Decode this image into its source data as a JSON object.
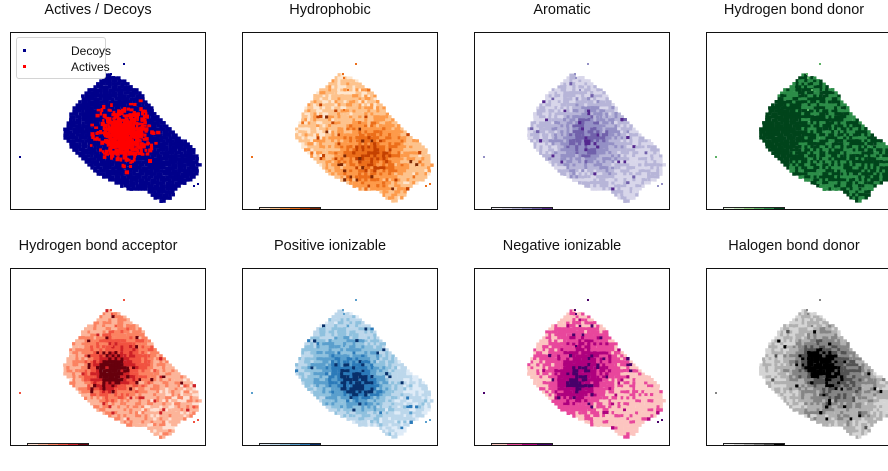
{
  "panels": [
    {
      "title": "Actives / Decoys",
      "kind": "scatter",
      "legend": [
        {
          "label": "Decoys",
          "color": "#00008b"
        },
        {
          "label": "Actives",
          "color": "#ff0000"
        }
      ]
    },
    {
      "title": "Hydrophobic",
      "kind": "heat",
      "cmap": "Oranges",
      "vmin": "0",
      "vmax": "12",
      "colors": [
        "#fee6ce",
        "#fdc38d",
        "#fd9a4a",
        "#ec6e1a",
        "#c44101",
        "#7f2704"
      ]
    },
    {
      "title": "Aromatic",
      "kind": "heat",
      "cmap": "Purples",
      "vmin": "0",
      "vmax": "6",
      "colors": [
        "#f2f0f7",
        "#d8d6ea",
        "#b7b5d8",
        "#9490c5",
        "#7161ab",
        "#54278f"
      ]
    },
    {
      "title": "Hydrogen bond donor",
      "kind": "heat",
      "cmap": "Greens",
      "vmin": "0",
      "vmax": "13",
      "colors": [
        "#e5f5e0",
        "#c1e6ba",
        "#92d185",
        "#5cb266",
        "#2c8d48",
        "#00441b"
      ]
    },
    {
      "title": "Hydrogen bond acceptor",
      "kind": "heat",
      "cmap": "Reds",
      "vmin": "0",
      "vmax": "18",
      "colors": [
        "#fee0d2",
        "#fcb499",
        "#fb8261",
        "#f15240",
        "#cd2026",
        "#67000d"
      ]
    },
    {
      "title": "Positive ionizable",
      "kind": "heat",
      "cmap": "Blues",
      "vmin": "0",
      "vmax": "5",
      "colors": [
        "#deebf7",
        "#bcd7eb",
        "#8fc1de",
        "#5a9fcd",
        "#2b7ab9",
        "#08306b"
      ]
    },
    {
      "title": "Negative ionizable",
      "kind": "heat",
      "cmap": "RdPu",
      "vmin": "0",
      "vmax": "3",
      "colors": [
        "#fcc5c0",
        "#e8479c",
        "#ae017e",
        "#49006a"
      ]
    },
    {
      "title": "Halogen bond donor",
      "kind": "heat",
      "cmap": "Greys",
      "vmin": "0",
      "vmax": "6",
      "colors": [
        "#f0f0f0",
        "#d4d4d4",
        "#b0b0b0",
        "#858585",
        "#525252",
        "#000000"
      ]
    }
  ],
  "chart_data": [
    {
      "type": "scatter",
      "title": "Actives / Decoys",
      "series": [
        {
          "name": "Decoys",
          "color": "#00008b"
        },
        {
          "name": "Actives",
          "color": "#ff0000"
        }
      ],
      "legend_position": "top-left",
      "axes": "off"
    },
    {
      "type": "heatmap",
      "title": "Hydrophobic",
      "colorbar": {
        "min": 0,
        "max": 12,
        "cmap": "Oranges"
      }
    },
    {
      "type": "heatmap",
      "title": "Aromatic",
      "colorbar": {
        "min": 0,
        "max": 6,
        "cmap": "Purples"
      }
    },
    {
      "type": "heatmap",
      "title": "Hydrogen bond donor",
      "colorbar": {
        "min": 0,
        "max": 13,
        "cmap": "Greens"
      }
    },
    {
      "type": "heatmap",
      "title": "Hydrogen bond acceptor",
      "colorbar": {
        "min": 0,
        "max": 18,
        "cmap": "Reds"
      }
    },
    {
      "type": "heatmap",
      "title": "Positive ionizable",
      "colorbar": {
        "min": 0,
        "max": 5,
        "cmap": "Blues"
      }
    },
    {
      "type": "heatmap",
      "title": "Negative ionizable",
      "colorbar": {
        "min": 0,
        "max": 3,
        "cmap": "RdPu"
      }
    },
    {
      "type": "heatmap",
      "title": "Halogen bond donor",
      "colorbar": {
        "min": 0,
        "max": 6,
        "cmap": "Greys"
      }
    }
  ]
}
